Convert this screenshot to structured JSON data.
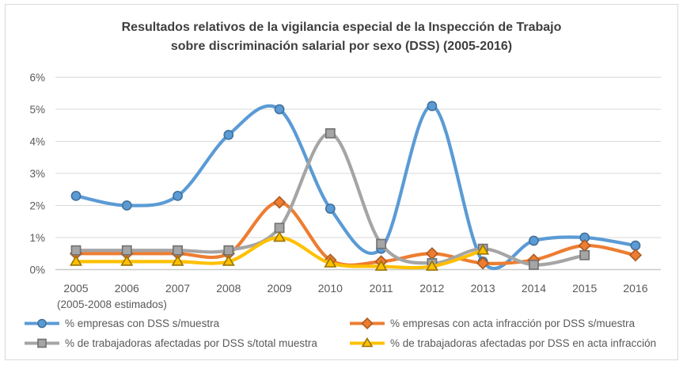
{
  "chart": {
    "title_line1": "Resultados relativos de la vigilancia especial de la Inspección de Trabajo",
    "title_line2": "sobre discriminación salarial por sexo (DSS) (2005-2016)",
    "note": "(2005-2008 estimados)",
    "background": "#FFFFFF",
    "border_color": "#D9D9D9",
    "grid_color": "#D9D9D9",
    "axis_text_color": "#595959",
    "title_color": "#3F3F3F"
  },
  "chart_data": {
    "type": "line",
    "smooth": true,
    "grid": true,
    "legend_position": "bottom-two-columns",
    "title": "Resultados relativos de la vigilancia especial de la Inspección de Trabajo sobre discriminación salarial por sexo (DSS) (2005-2016)",
    "xlabel": "",
    "ylabel": "",
    "x_note": "(2005-2008 estimados)",
    "categories": [
      "2005",
      "2006",
      "2007",
      "2008",
      "2009",
      "2010",
      "2011",
      "2012",
      "2013",
      "2014",
      "2015",
      "2016"
    ],
    "y_ticks": [
      "0%",
      "1%",
      "2%",
      "3%",
      "4%",
      "5%",
      "6%"
    ],
    "ylim": [
      0,
      6
    ],
    "y_unit": "%",
    "series": [
      {
        "name": "% empresas con DSS s/muestra",
        "marker": "circle",
        "color": "#5B9BD5",
        "marker_border": "#41719C",
        "values": [
          2.3,
          2.0,
          2.3,
          4.2,
          5.0,
          1.9,
          0.65,
          5.1,
          0.25,
          0.9,
          1.0,
          0.75
        ]
      },
      {
        "name": "% empresas con acta infracción por DSS s/muestra",
        "marker": "diamond",
        "color": "#ED7D31",
        "marker_border": "#AE5A21",
        "values": [
          0.5,
          0.5,
          0.5,
          0.5,
          2.1,
          0.3,
          0.25,
          0.5,
          0.2,
          0.3,
          0.75,
          0.45
        ]
      },
      {
        "name": "% de trabajadoras afectadas por DSS s/total muestra",
        "marker": "square",
        "color": "#A5A5A5",
        "marker_border": "#707070",
        "values": [
          0.6,
          0.6,
          0.6,
          0.6,
          1.3,
          4.25,
          0.8,
          0.2,
          0.65,
          0.15,
          0.45,
          null
        ]
      },
      {
        "name": "% de trabajadoras afectadas por DSS en acta infracción",
        "marker": "triangle",
        "color": "#FFC000",
        "marker_border": "#997300",
        "values": [
          0.25,
          0.25,
          0.25,
          0.25,
          1.0,
          0.2,
          0.1,
          0.1,
          0.6,
          null,
          null,
          null
        ]
      }
    ]
  }
}
